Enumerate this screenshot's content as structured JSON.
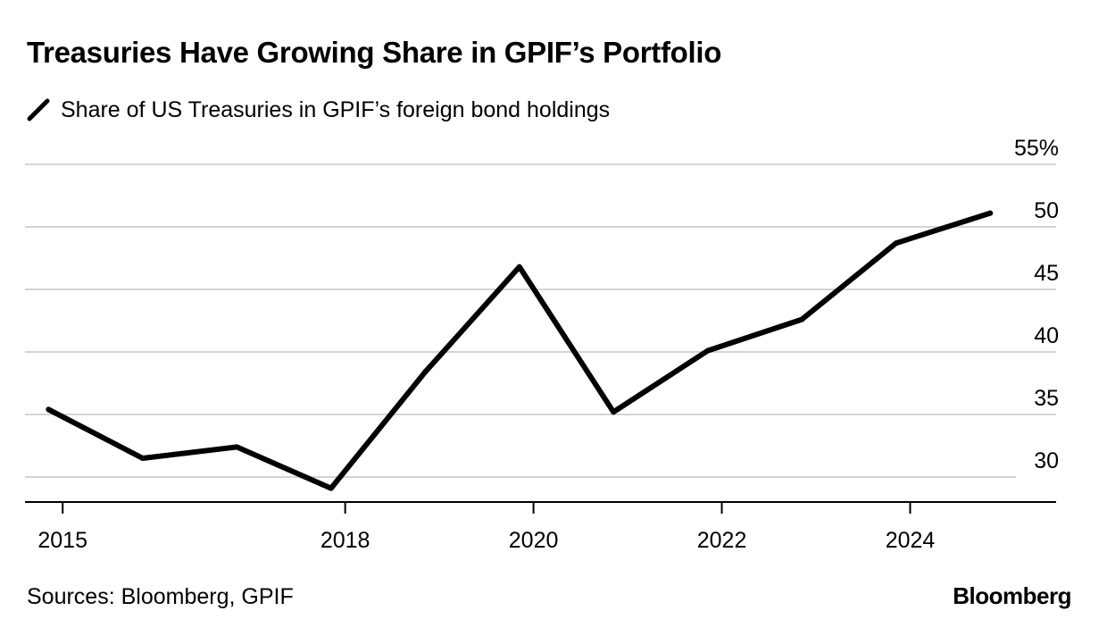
{
  "chart_data": {
    "type": "line",
    "title": "Treasuries Have Growing Share in GPIF’s Portfolio",
    "series": [
      {
        "name": "Share of US Treasuries in GPIF’s foreign bond holdings",
        "color": "#000000",
        "x": [
          2014.85,
          2015.85,
          2016.85,
          2017.85,
          2018.85,
          2019.85,
          2020.85,
          2021.85,
          2022.85,
          2023.85,
          2024.85
        ],
        "values": [
          35.4,
          31.5,
          32.4,
          29.1,
          38.4,
          46.8,
          35.2,
          40.1,
          42.6,
          48.7,
          51.1
        ]
      }
    ],
    "x_ticks": [
      2015,
      2018,
      2020,
      2022,
      2024
    ],
    "x_tick_labels": [
      "2015",
      "2018",
      "2020",
      "2022",
      "2024"
    ],
    "xlim": [
      2014.6,
      2025.55
    ],
    "y_ticks": [
      30,
      35,
      40,
      45,
      50,
      55
    ],
    "y_tick_labels": [
      "30",
      "35",
      "40",
      "45",
      "50",
      "55%"
    ],
    "ylim": [
      28,
      55
    ],
    "xlabel": "",
    "ylabel": "",
    "grid": true,
    "legend_position": "top-left"
  },
  "footer": {
    "source": "Sources: Bloomberg, GPIF",
    "brand": "Bloomberg"
  }
}
